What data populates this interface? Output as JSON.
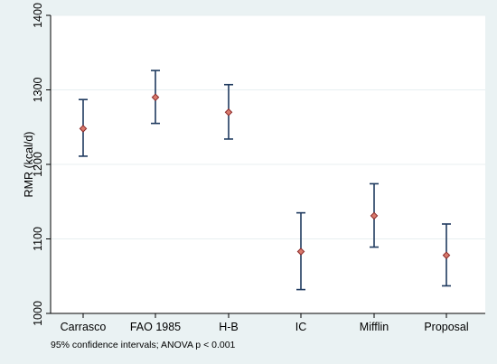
{
  "chart_data": {
    "type": "scatter",
    "subtype": "mean with 95% confidence interval error bars",
    "ylabel": "RMR (kcal/d)",
    "xlabel": "",
    "ylim": [
      1000,
      1400
    ],
    "yticks": [
      "1000",
      "1100",
      "1200",
      "1300",
      "1400"
    ],
    "categories": [
      "Carrasco",
      "FAO 1985",
      "H-B",
      "IC",
      "Mifflin",
      "Proposal"
    ],
    "means": [
      1248,
      1290,
      1270,
      1083,
      1131,
      1078
    ],
    "ci_lower": [
      1211,
      1255,
      1234,
      1032,
      1089,
      1037
    ],
    "ci_upper": [
      1287,
      1326,
      1307,
      1135,
      1174,
      1120
    ],
    "note": "95% confidence intervals;  ANOVA p < 0.001",
    "grid": "horizontal",
    "colors": {
      "background": "#eaf2f3",
      "plot_area": "#ffffff",
      "gridline": "#e8eff1",
      "error_bar": "#1f3a5f",
      "marker_fill": "#d97a6c",
      "marker_edge": "#8b2a2a"
    }
  }
}
